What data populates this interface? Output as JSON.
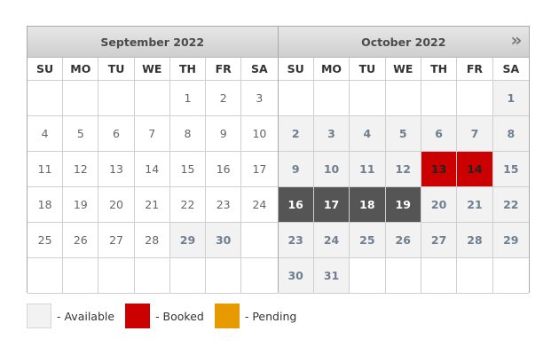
{
  "calendar": {
    "weekdays": [
      "SU",
      "MO",
      "TU",
      "WE",
      "TH",
      "FR",
      "SA"
    ],
    "months": [
      {
        "title": "September 2022",
        "days": [
          "",
          "",
          "",
          "",
          "1",
          "2",
          "3",
          "4",
          "5",
          "6",
          "7",
          "8",
          "9",
          "10",
          "11",
          "12",
          "13",
          "14",
          "15",
          "16",
          "17",
          "18",
          "19",
          "20",
          "21",
          "22",
          "23",
          "24",
          "25",
          "26",
          "27",
          "28",
          "29",
          "30",
          "",
          "",
          "",
          "",
          "",
          "",
          "",
          ""
        ],
        "states": [
          "empty",
          "empty",
          "empty",
          "empty",
          "past",
          "past",
          "past",
          "past",
          "past",
          "past",
          "past",
          "past",
          "past",
          "past",
          "past",
          "past",
          "past",
          "past",
          "past",
          "past",
          "past",
          "past",
          "past",
          "past",
          "past",
          "past",
          "past",
          "past",
          "past",
          "past",
          "past",
          "past",
          "avail",
          "avail",
          "empty",
          "empty",
          "empty",
          "empty",
          "empty",
          "empty",
          "empty",
          "empty"
        ]
      },
      {
        "title": "October 2022",
        "days": [
          "",
          "",
          "",
          "",
          "",
          "",
          "1",
          "2",
          "3",
          "4",
          "5",
          "6",
          "7",
          "8",
          "9",
          "10",
          "11",
          "12",
          "13",
          "14",
          "15",
          "16",
          "17",
          "18",
          "19",
          "20",
          "21",
          "22",
          "23",
          "24",
          "25",
          "26",
          "27",
          "28",
          "29",
          "30",
          "31",
          "",
          "",
          "",
          "",
          ""
        ],
        "states": [
          "empty",
          "empty",
          "empty",
          "empty",
          "empty",
          "empty",
          "avail",
          "avail",
          "avail",
          "avail",
          "avail",
          "avail",
          "avail",
          "avail",
          "avail",
          "avail",
          "avail",
          "avail",
          "booked",
          "booked",
          "avail",
          "selected",
          "selected",
          "selected",
          "selected",
          "avail",
          "avail",
          "avail",
          "avail",
          "avail",
          "avail",
          "avail",
          "avail",
          "avail",
          "avail",
          "avail",
          "avail",
          "empty",
          "empty",
          "empty",
          "empty",
          "empty"
        ]
      }
    ],
    "next_icon": "»"
  },
  "legend": {
    "available_label": "- Available",
    "booked_label": "- Booked",
    "pending_label": "- Pending",
    "colors": {
      "available": "#f2f2f2",
      "booked": "#cc0000",
      "pending": "#e69a00"
    }
  }
}
